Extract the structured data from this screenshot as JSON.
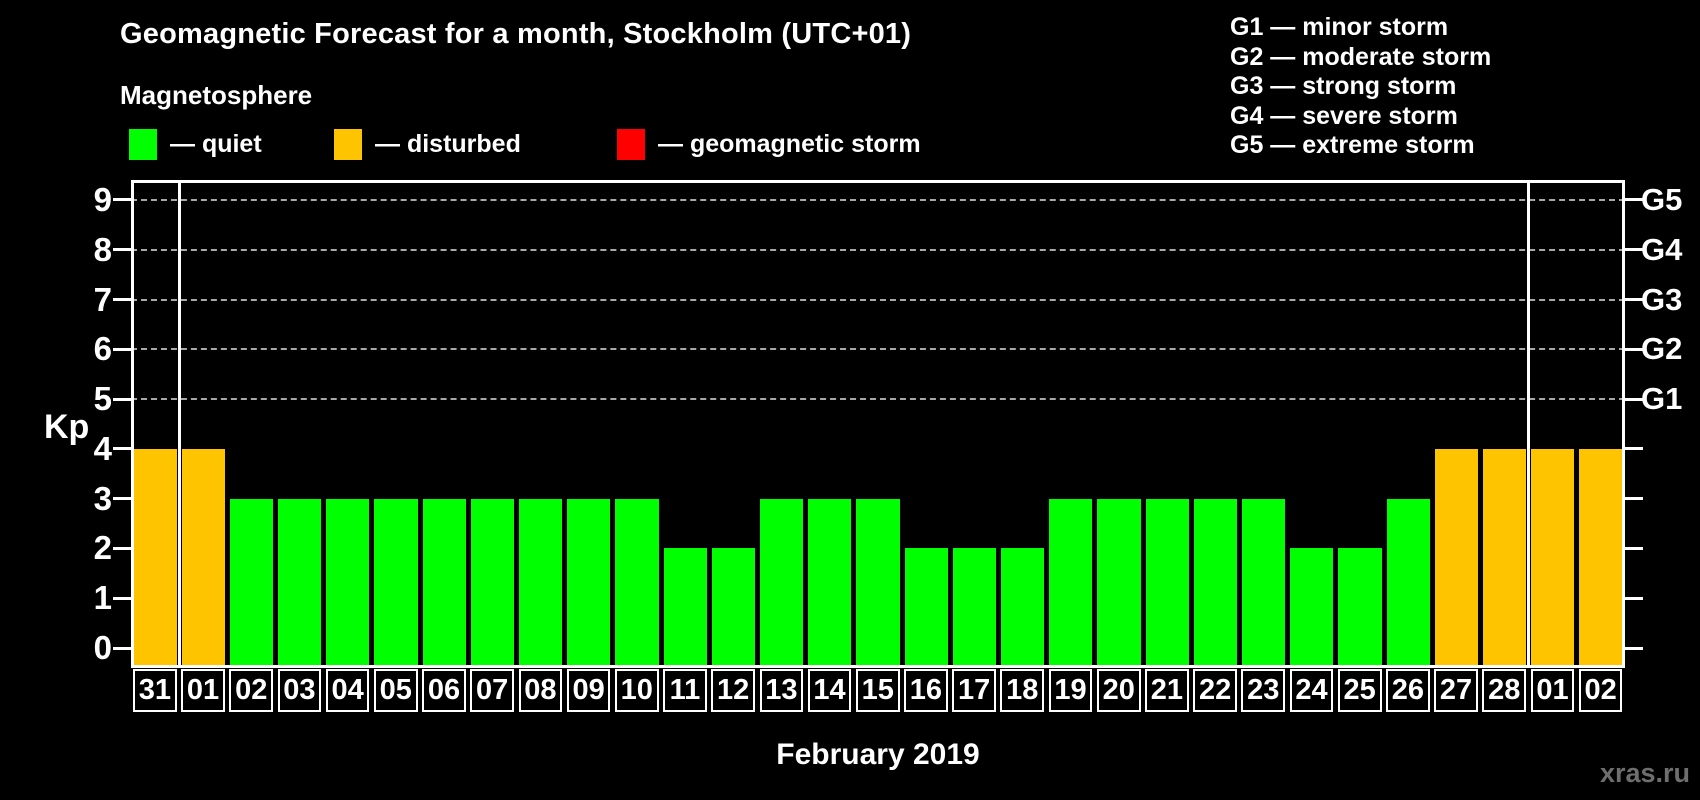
{
  "title": "Geomagnetic Forecast for a month, Stockholm (UTC+01)",
  "subtitle": "Magnetosphere",
  "legend": {
    "items": [
      {
        "name": "quiet",
        "label": "— quiet",
        "color": "#00ff00"
      },
      {
        "name": "disturbed",
        "label": "— disturbed",
        "color": "#ffc400"
      },
      {
        "name": "storm",
        "label": "— geomagnetic storm",
        "color": "#ff0000"
      }
    ]
  },
  "g_scale_legend": [
    "G1 — minor storm",
    "G2 — moderate storm",
    "G3 — strong storm",
    "G4 — severe storm",
    "G5 — extreme storm"
  ],
  "watermark": "xras.ru",
  "chart_data": {
    "type": "bar",
    "title": "Geomagnetic Forecast for a month, Stockholm (UTC+01)",
    "xlabel": "February 2019",
    "ylabel": "Kp",
    "ylim": [
      -0.4,
      9.4
    ],
    "yticks": [
      0,
      1,
      2,
      3,
      4,
      5,
      6,
      7,
      8,
      9
    ],
    "grid_levels": [
      5,
      6,
      7,
      8,
      9
    ],
    "grid_on": true,
    "right_axis": [
      {
        "label": "G1",
        "value": 5
      },
      {
        "label": "G2",
        "value": 6
      },
      {
        "label": "G3",
        "value": 7
      },
      {
        "label": "G4",
        "value": 8
      },
      {
        "label": "G5",
        "value": 9
      }
    ],
    "categories": [
      "31",
      "01",
      "02",
      "03",
      "04",
      "05",
      "06",
      "07",
      "08",
      "09",
      "10",
      "11",
      "12",
      "13",
      "14",
      "15",
      "16",
      "17",
      "18",
      "19",
      "20",
      "21",
      "22",
      "23",
      "24",
      "25",
      "26",
      "27",
      "28",
      "01",
      "02"
    ],
    "values": [
      4,
      4,
      3,
      3,
      3,
      3,
      3,
      3,
      3,
      3,
      3,
      2,
      2,
      3,
      3,
      3,
      2,
      2,
      2,
      3,
      3,
      3,
      3,
      3,
      2,
      2,
      3,
      4,
      4,
      4,
      4
    ],
    "month_separators_after": [
      0,
      28
    ],
    "colors": {
      "quiet": "#00ff00",
      "disturbed": "#ffc400",
      "storm": "#ff0000"
    },
    "color_rule": {
      "quiet_max": 3,
      "disturbed_max": 4
    },
    "legend_position": "top"
  }
}
